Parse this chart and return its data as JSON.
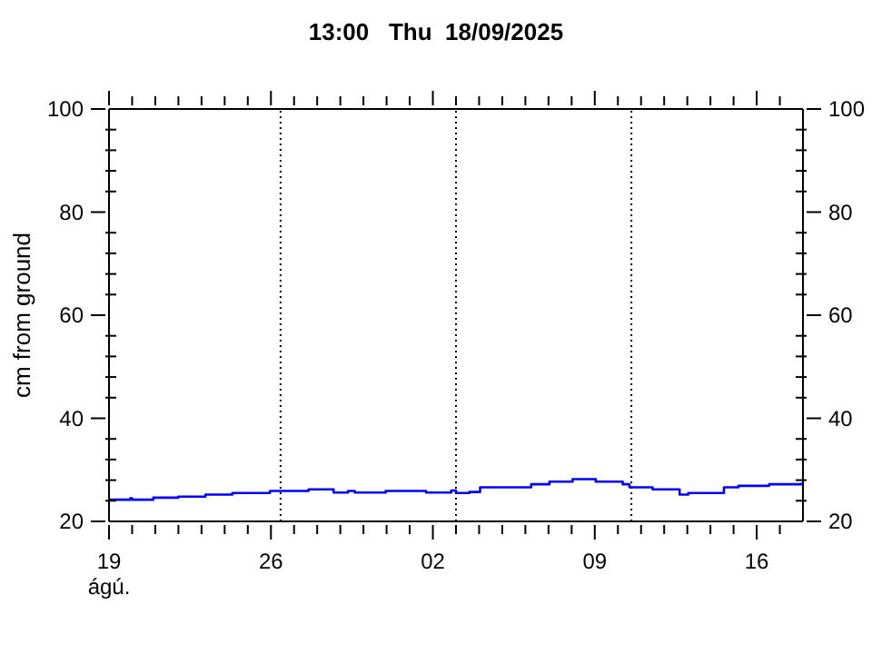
{
  "chart_data": {
    "type": "step",
    "title": "13:00   Thu  18/09/2025",
    "ylabel": "cm from ground",
    "x": [
      "2025-08-19T00:00",
      "2025-08-19T22:00",
      "2025-08-20T00:00",
      "2025-08-20T22:00",
      "2025-08-22T00:00",
      "2025-08-23T04:00",
      "2025-08-24T08:00",
      "2025-08-25T23:00",
      "2025-08-27T15:00",
      "2025-08-28T17:00",
      "2025-08-29T08:00",
      "2025-08-29T15:00",
      "2025-08-30T23:00",
      "2025-09-01T17:00",
      "2025-09-02T19:00",
      "2025-09-03T00:00",
      "2025-09-03T14:00",
      "2025-09-04T01:00",
      "2025-09-06T06:00",
      "2025-09-07T01:00",
      "2025-09-08T01:00",
      "2025-09-09T01:00",
      "2025-09-10T05:00",
      "2025-09-10T12:00",
      "2025-09-11T12:00",
      "2025-09-12T16:00",
      "2025-09-13T01:00",
      "2025-09-14T14:00",
      "2025-09-15T05:00",
      "2025-09-16T13:00",
      "2025-09-17T22:00"
    ],
    "series": [
      {
        "color": "#0000ff",
        "values": [
          24.2,
          24.5,
          24.2,
          24.6,
          24.8,
          25.2,
          25.5,
          25.9,
          26.2,
          25.6,
          25.9,
          25.6,
          25.9,
          25.6,
          26.0,
          25.5,
          25.7,
          26.6,
          27.2,
          27.7,
          28.2,
          27.7,
          27.2,
          26.6,
          26.2,
          25.2,
          25.5,
          26.6,
          26.9,
          27.2,
          27.5
        ]
      }
    ],
    "xlim": [
      "2025-08-19",
      "2025-09-18"
    ],
    "xticks": [
      {
        "value": "2025-08-19",
        "label": "19 ágú."
      },
      {
        "value": "2025-08-20",
        "label": null
      },
      {
        "value": "2025-08-21",
        "label": null
      },
      {
        "value": "2025-08-22",
        "label": null
      },
      {
        "value": "2025-08-23",
        "label": null
      },
      {
        "value": "2025-08-24",
        "label": null
      },
      {
        "value": "2025-08-25",
        "label": null
      },
      {
        "value": "2025-08-26",
        "label": "26"
      },
      {
        "value": "2025-08-27",
        "label": null
      },
      {
        "value": "2025-08-28",
        "label": null
      },
      {
        "value": "2025-08-29",
        "label": null
      },
      {
        "value": "2025-08-30",
        "label": null
      },
      {
        "value": "2025-08-31",
        "label": null
      },
      {
        "value": "2025-09-01",
        "label": null
      },
      {
        "value": "2025-09-02",
        "label": "02"
      },
      {
        "value": "2025-09-03",
        "label": null
      },
      {
        "value": "2025-09-04",
        "label": null
      },
      {
        "value": "2025-09-05",
        "label": null
      },
      {
        "value": "2025-09-06",
        "label": null
      },
      {
        "value": "2025-09-07",
        "label": null
      },
      {
        "value": "2025-09-08",
        "label": null
      },
      {
        "value": "2025-09-09",
        "label": "09"
      },
      {
        "value": "2025-09-10",
        "label": null
      },
      {
        "value": "2025-09-11",
        "label": null
      },
      {
        "value": "2025-09-12",
        "label": null
      },
      {
        "value": "2025-09-13",
        "label": null
      },
      {
        "value": "2025-09-14",
        "label": null
      },
      {
        "value": "2025-09-15",
        "label": null
      },
      {
        "value": "2025-09-16",
        "label": "16"
      },
      {
        "value": "2025-09-17",
        "label": null
      }
    ],
    "ylim": [
      20,
      100
    ],
    "yticks": [
      20,
      {
        "value": 24,
        "label": null
      },
      {
        "value": 28,
        "label": null
      },
      {
        "value": 32,
        "label": null
      },
      {
        "value": 36,
        "label": null
      },
      40,
      {
        "value": 44,
        "label": null
      },
      {
        "value": 48,
        "label": null
      },
      {
        "value": 52,
        "label": null
      },
      {
        "value": 56,
        "label": null
      },
      60,
      {
        "value": 64,
        "label": null
      },
      {
        "value": 68,
        "label": null
      },
      {
        "value": 72,
        "label": null
      },
      {
        "value": 76,
        "label": null
      },
      80,
      {
        "value": 84,
        "label": null
      },
      {
        "value": 88,
        "label": null
      },
      {
        "value": 92,
        "label": null
      },
      {
        "value": 96,
        "label": null
      },
      100
    ],
    "y2lim": [
      20,
      100
    ],
    "y2ticks": [
      20,
      {
        "value": 24,
        "label": null
      },
      {
        "value": 28,
        "label": null
      },
      {
        "value": 32,
        "label": null
      },
      {
        "value": 36,
        "label": null
      },
      40,
      {
        "value": 44,
        "label": null
      },
      {
        "value": 48,
        "label": null
      },
      {
        "value": 52,
        "label": null
      },
      {
        "value": 56,
        "label": null
      },
      60,
      {
        "value": 64,
        "label": null
      },
      {
        "value": 68,
        "label": null
      },
      {
        "value": 72,
        "label": null
      },
      {
        "value": 76,
        "label": null
      },
      80,
      {
        "value": 84,
        "label": null
      },
      {
        "value": 88,
        "label": null
      },
      {
        "value": 92,
        "label": null
      },
      {
        "value": 96,
        "label": null
      },
      100
    ],
    "ref_lines": [
      {
        "axis": "x",
        "value": "2025-08-26T10:00",
        "color": "#000000",
        "line_style": "dotted"
      },
      {
        "axis": "x",
        "value": "2025-09-03T00:00",
        "color": "#000000",
        "line_style": "dotted"
      },
      {
        "axis": "x",
        "value": "2025-09-10T14:00",
        "color": "#000000",
        "line_style": "dotted"
      }
    ]
  }
}
